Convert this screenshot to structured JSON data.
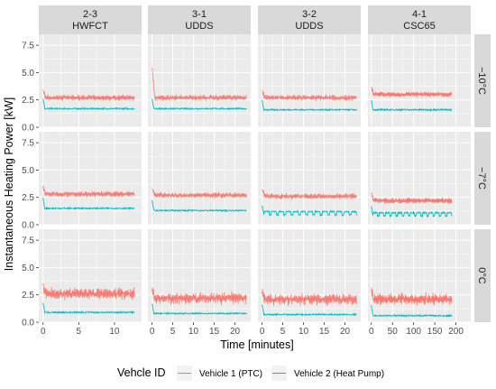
{
  "chart_data": {
    "type": "line",
    "xlabel": "Time [minutes]",
    "ylabel": "Instantaneous Heating Power [kW]",
    "ylim": [
      0,
      8.5
    ],
    "y_ticks": [
      0.0,
      2.5,
      5.0,
      7.5
    ],
    "y_tick_labels": [
      "0.0",
      "2.5",
      "5.0",
      "7.5"
    ],
    "grid": true,
    "legend_placement": "bottom",
    "colors": {
      "ptc": "#f8766d",
      "hp": "#00bfc4"
    },
    "legend": {
      "title": "Vehcle ID",
      "entries": [
        "Vehicle 1 (PTC)",
        "Vehicle 2 (Heat Pump)"
      ]
    },
    "columns": [
      {
        "line1": "2-3",
        "line2": "HWFCT",
        "x_ticks": [
          0,
          5,
          10
        ],
        "xlim": [
          -0.6,
          13.8
        ],
        "duration": 12.8
      },
      {
        "line1": "3-1",
        "line2": "UDDS",
        "x_ticks": [
          0,
          5,
          10,
          15,
          20
        ],
        "xlim": [
          -1,
          23.8
        ],
        "duration": 22.8
      },
      {
        "line1": "3-2",
        "line2": "UDDS",
        "x_ticks": [
          0,
          5,
          10,
          15,
          20
        ],
        "xlim": [
          -1,
          23.8
        ],
        "duration": 22.8
      },
      {
        "line1": "4-1",
        "line2": "CSC65",
        "x_ticks": [
          0,
          50,
          100,
          150,
          200
        ],
        "xlim": [
          -8,
          235
        ],
        "duration": 190
      }
    ],
    "rows": [
      {
        "label": "−10°C"
      },
      {
        "label": "−7°C"
      },
      {
        "label": "0°C"
      }
    ],
    "series_levels": {
      "row_-10C": {
        "ptc": [
          2.7,
          2.7,
          2.7,
          3.0
        ],
        "hp": [
          1.7,
          1.7,
          1.6,
          1.6
        ]
      },
      "row_-7C": {
        "ptc": [
          2.8,
          2.7,
          2.6,
          2.2
        ],
        "hp": [
          1.5,
          1.3,
          1.2,
          1.1
        ]
      },
      "row_0C": {
        "ptc": [
          2.6,
          2.2,
          2.1,
          2.1
        ],
        "hp": [
          0.9,
          0.8,
          0.7,
          0.6
        ]
      }
    }
  }
}
